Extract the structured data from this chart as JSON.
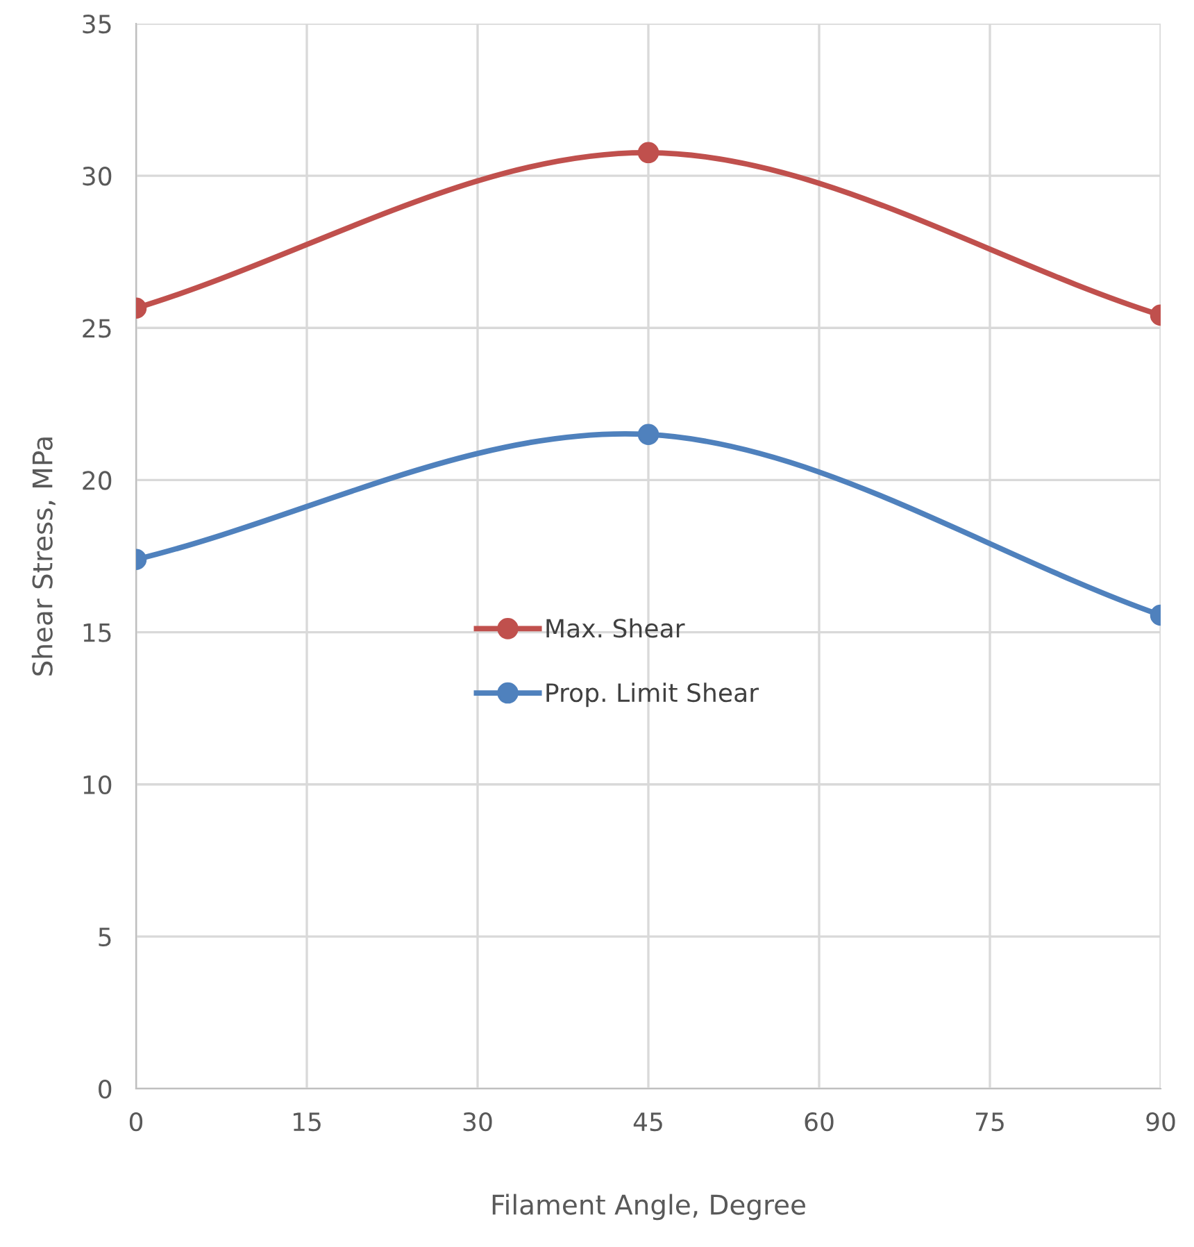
{
  "chart_data": {
    "type": "line",
    "xlabel": "Filament Angle, Degree",
    "ylabel": "Shear Stress, MPa",
    "x": [
      0,
      45,
      90
    ],
    "series": [
      {
        "name": "Max. Shear",
        "color": "#c0504d",
        "values": [
          25.65,
          30.76,
          25.42
        ]
      },
      {
        "name": "Prop. Limit Shear",
        "color": "#4f81bd",
        "values": [
          17.39,
          21.5,
          15.56
        ]
      }
    ],
    "xlim": [
      0,
      90
    ],
    "xticks": [
      0,
      15,
      30,
      45,
      60,
      75,
      90
    ],
    "ylim": [
      0,
      35
    ],
    "yticks": [
      0,
      5,
      10,
      15,
      20,
      25,
      30,
      35
    ],
    "grid": true,
    "legend": "center",
    "marker": "circle",
    "line_style": "solid"
  }
}
